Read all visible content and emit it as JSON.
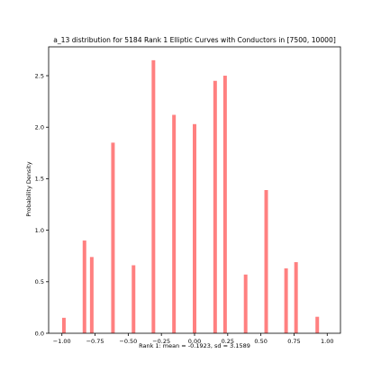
{
  "chart_data": {
    "type": "bar",
    "title": "a_13 distribution for 5184 Rank 1 Elliptic Curves with Conductors in [7500, 10000]",
    "xlabel": "Rank 1: mean = -0.1923, sd = 3.1589",
    "ylabel": "Probability Density",
    "xlim": [
      -1.1,
      1.1
    ],
    "ylim": [
      0,
      2.78
    ],
    "xticks": [
      {
        "value": -1.0,
        "label": "−1.00"
      },
      {
        "value": -0.75,
        "label": "−0.75"
      },
      {
        "value": -0.5,
        "label": "−0.50"
      },
      {
        "value": -0.25,
        "label": "−0.25"
      },
      {
        "value": 0.0,
        "label": "0.00"
      },
      {
        "value": 0.25,
        "label": "0.25"
      },
      {
        "value": 0.5,
        "label": "0.50"
      },
      {
        "value": 0.75,
        "label": "0.75"
      },
      {
        "value": 1.0,
        "label": "1.00"
      }
    ],
    "yticks": [
      {
        "value": 0.0,
        "label": "0.0"
      },
      {
        "value": 0.5,
        "label": "0.5"
      },
      {
        "value": 1.0,
        "label": "1.0"
      },
      {
        "value": 1.5,
        "label": "1.5"
      },
      {
        "value": 2.0,
        "label": "2.0"
      },
      {
        "value": 2.5,
        "label": "2.5"
      }
    ],
    "bar_width": 0.027,
    "bars": [
      {
        "x": -0.985,
        "y": 0.15
      },
      {
        "x": -0.83,
        "y": 0.9
      },
      {
        "x": -0.775,
        "y": 0.74
      },
      {
        "x": -0.615,
        "y": 1.85
      },
      {
        "x": -0.46,
        "y": 0.66
      },
      {
        "x": -0.31,
        "y": 2.65
      },
      {
        "x": -0.155,
        "y": 2.12
      },
      {
        "x": 0.0,
        "y": 2.03
      },
      {
        "x": 0.155,
        "y": 2.45
      },
      {
        "x": 0.23,
        "y": 2.5
      },
      {
        "x": 0.385,
        "y": 0.57
      },
      {
        "x": 0.54,
        "y": 1.39
      },
      {
        "x": 0.69,
        "y": 0.63
      },
      {
        "x": 0.765,
        "y": 0.69
      },
      {
        "x": 0.925,
        "y": 0.16
      }
    ],
    "colors": {
      "bar": "#ff8080",
      "axis": "#000000"
    },
    "grid": false,
    "legend": "none"
  }
}
